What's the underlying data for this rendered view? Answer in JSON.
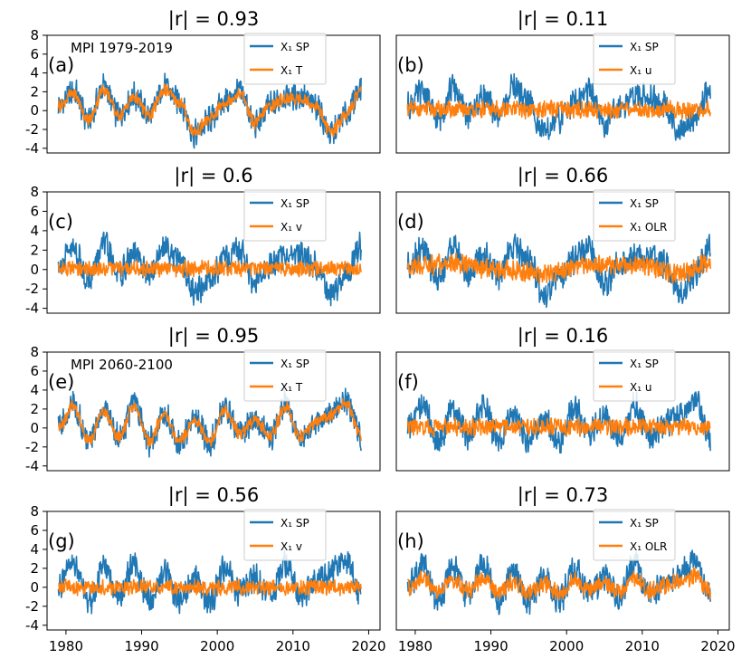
{
  "figure": {
    "colors": {
      "sp": "#1f77b4",
      "var": "#ff7f0e"
    }
  },
  "chart_data": [
    {
      "id": "a",
      "type": "line",
      "title": "|r| = 0.93",
      "panel_label": "(a)",
      "period_label": "MPI 1979-2019",
      "xlim": [
        1977.5,
        2021.5
      ],
      "ylim": [
        -4.5,
        8
      ],
      "yticks": [
        -4,
        -2,
        0,
        2,
        4,
        6,
        8
      ],
      "xticks": [],
      "legend": {
        "location": "upper-center",
        "entries": [
          "X₁ SP",
          "X₁ T"
        ]
      },
      "series": [
        {
          "name": "X₁ SP",
          "color": "#1f77b4",
          "x": [
            1979,
            1981,
            1983,
            1985,
            1987,
            1989,
            1991,
            1993,
            1995,
            1997,
            1999,
            2001,
            2003,
            2005,
            2007,
            2009,
            2011,
            2013,
            2015,
            2017,
            2019
          ],
          "values": [
            0.5,
            2.0,
            -1.0,
            2.5,
            -0.5,
            1.5,
            -0.5,
            2.5,
            1.0,
            -2.5,
            -1.0,
            1.0,
            2.0,
            -1.5,
            0.5,
            1.5,
            1.5,
            0.5,
            -2.5,
            -0.5,
            2.5
          ],
          "amplitude": 1.3
        },
        {
          "name": "X₁ T",
          "color": "#ff7f0e",
          "x": [
            1979,
            1981,
            1983,
            1985,
            1987,
            1989,
            1991,
            1993,
            1995,
            1997,
            1999,
            2001,
            2003,
            2005,
            2007,
            2009,
            2011,
            2013,
            2015,
            2017,
            2019
          ],
          "values": [
            0.5,
            1.8,
            -1.0,
            2.3,
            -0.5,
            1.4,
            -0.5,
            2.2,
            0.9,
            -2.3,
            -0.9,
            0.9,
            1.8,
            -1.3,
            0.5,
            1.3,
            1.3,
            0.5,
            -2.3,
            -0.5,
            2.2
          ],
          "amplitude": 0.6
        }
      ]
    },
    {
      "id": "b",
      "type": "line",
      "title": "|r| = 0.11",
      "panel_label": "(b)",
      "xlim": [
        1977.5,
        2021.5
      ],
      "ylim": [
        -4.5,
        8
      ],
      "yticks": [],
      "xticks": [],
      "legend": {
        "location": "upper-center",
        "entries": [
          "X₁ SP",
          "X₁ u"
        ]
      },
      "series": [
        {
          "name": "X₁ SP",
          "color": "#1f77b4",
          "x": [
            1979,
            1981,
            1983,
            1985,
            1987,
            1989,
            1991,
            1993,
            1995,
            1997,
            1999,
            2001,
            2003,
            2005,
            2007,
            2009,
            2011,
            2013,
            2015,
            2017,
            2019
          ],
          "values": [
            0.5,
            2.0,
            -1.0,
            2.5,
            -0.5,
            1.5,
            -0.5,
            2.5,
            1.0,
            -2.5,
            -1.0,
            1.0,
            2.0,
            -1.5,
            0.5,
            1.5,
            1.5,
            0.5,
            -2.5,
            -0.5,
            2.5
          ],
          "amplitude": 1.3
        },
        {
          "name": "X₁ u",
          "color": "#ff7f0e",
          "x": [
            1979,
            2019
          ],
          "values": [
            0.1,
            0.1
          ],
          "amplitude": 0.8
        }
      ]
    },
    {
      "id": "c",
      "type": "line",
      "title": "|r| = 0.6",
      "panel_label": "(c)",
      "xlim": [
        1977.5,
        2021.5
      ],
      "ylim": [
        -4.5,
        8
      ],
      "yticks": [
        -4,
        -2,
        0,
        2,
        4,
        6,
        8
      ],
      "xticks": [],
      "legend": {
        "location": "upper-center",
        "entries": [
          "X₁ SP",
          "X₁ v"
        ]
      },
      "series": [
        {
          "name": "X₁ SP",
          "color": "#1f77b4",
          "x": [
            1979,
            1981,
            1983,
            1985,
            1987,
            1989,
            1991,
            1993,
            1995,
            1997,
            1999,
            2001,
            2003,
            2005,
            2007,
            2009,
            2011,
            2013,
            2015,
            2017,
            2019
          ],
          "values": [
            0.5,
            2.0,
            -1.0,
            2.5,
            -0.5,
            1.5,
            -0.5,
            2.5,
            1.0,
            -2.5,
            -1.0,
            1.0,
            2.0,
            -1.5,
            0.5,
            1.5,
            1.5,
            0.5,
            -2.5,
            -0.5,
            2.5
          ],
          "amplitude": 1.3
        },
        {
          "name": "X₁ v",
          "color": "#ff7f0e",
          "x": [
            1979,
            2019
          ],
          "values": [
            0.1,
            0.1
          ],
          "amplitude": 0.7
        }
      ]
    },
    {
      "id": "d",
      "type": "line",
      "title": "|r| = 0.66",
      "panel_label": "(d)",
      "xlim": [
        1977.5,
        2021.5
      ],
      "ylim": [
        -4.5,
        8
      ],
      "yticks": [],
      "xticks": [],
      "legend": {
        "location": "upper-center",
        "entries": [
          "X₁ SP",
          "X₁ OLR"
        ]
      },
      "series": [
        {
          "name": "X₁ SP",
          "color": "#1f77b4",
          "x": [
            1979,
            1981,
            1983,
            1985,
            1987,
            1989,
            1991,
            1993,
            1995,
            1997,
            1999,
            2001,
            2003,
            2005,
            2007,
            2009,
            2011,
            2013,
            2015,
            2017,
            2019
          ],
          "values": [
            0.5,
            2.0,
            -1.0,
            2.5,
            -0.5,
            1.5,
            -0.5,
            2.5,
            1.0,
            -2.5,
            -1.0,
            1.0,
            2.0,
            -1.5,
            0.5,
            1.5,
            1.5,
            0.5,
            -2.5,
            -0.5,
            2.5
          ],
          "amplitude": 1.3
        },
        {
          "name": "X₁ OLR",
          "color": "#ff7f0e",
          "x": [
            1979,
            1985,
            1991,
            1997,
            2003,
            2009,
            2015,
            2019
          ],
          "values": [
            0.3,
            0.6,
            0.0,
            -0.5,
            0.6,
            0.5,
            -0.5,
            0.8
          ],
          "amplitude": 0.9
        }
      ]
    },
    {
      "id": "e",
      "type": "line",
      "title": "|r| = 0.95",
      "panel_label": "(e)",
      "period_label": "MPI 2060-2100",
      "xlim": [
        1977.5,
        2021.5
      ],
      "ylim": [
        -4.5,
        8
      ],
      "yticks": [
        -4,
        -2,
        0,
        2,
        4,
        6,
        8
      ],
      "xticks": [],
      "legend": {
        "location": "upper-center",
        "entries": [
          "X₁ SP",
          "X₁ T"
        ]
      },
      "series": [
        {
          "name": "X₁ SP",
          "color": "#1f77b4",
          "x": [
            1979,
            1981,
            1983,
            1985,
            1987,
            1989,
            1991,
            1993,
            1995,
            1997,
            1999,
            2001,
            2003,
            2005,
            2007,
            2009,
            2011,
            2013,
            2015,
            2017,
            2019
          ],
          "values": [
            0.0,
            2.5,
            -1.5,
            2.0,
            -1.0,
            2.5,
            -1.5,
            1.5,
            -1.5,
            1.0,
            -1.5,
            2.0,
            -0.5,
            1.0,
            -1.0,
            2.5,
            -1.0,
            0.5,
            1.5,
            3.0,
            -1.0
          ],
          "amplitude": 1.3
        },
        {
          "name": "X₁ T",
          "color": "#ff7f0e",
          "x": [
            1979,
            1981,
            1983,
            1985,
            1987,
            1989,
            1991,
            1993,
            1995,
            1997,
            1999,
            2001,
            2003,
            2005,
            2007,
            2009,
            2011,
            2013,
            2015,
            2017,
            2019
          ],
          "values": [
            0.0,
            2.3,
            -1.4,
            1.8,
            -0.9,
            2.3,
            -1.4,
            1.4,
            -1.4,
            0.9,
            -1.4,
            1.8,
            -0.5,
            0.9,
            -0.9,
            2.3,
            -0.9,
            0.5,
            1.4,
            2.7,
            -0.9
          ],
          "amplitude": 0.6
        }
      ]
    },
    {
      "id": "f",
      "type": "line",
      "title": "|r| = 0.16",
      "panel_label": "(f)",
      "xlim": [
        1977.5,
        2021.5
      ],
      "ylim": [
        -4.5,
        8
      ],
      "yticks": [],
      "xticks": [],
      "legend": {
        "location": "upper-center",
        "entries": [
          "X₁ SP",
          "X₁ u"
        ]
      },
      "series": [
        {
          "name": "X₁ SP",
          "color": "#1f77b4",
          "x": [
            1979,
            1981,
            1983,
            1985,
            1987,
            1989,
            1991,
            1993,
            1995,
            1997,
            1999,
            2001,
            2003,
            2005,
            2007,
            2009,
            2011,
            2013,
            2015,
            2017,
            2019
          ],
          "values": [
            0.0,
            2.5,
            -1.5,
            2.0,
            -1.0,
            2.5,
            -1.5,
            1.5,
            -1.5,
            1.0,
            -1.5,
            2.0,
            -0.5,
            1.0,
            -1.0,
            2.5,
            -1.0,
            0.5,
            1.5,
            3.0,
            -1.0
          ],
          "amplitude": 1.3
        },
        {
          "name": "X₁ u",
          "color": "#ff7f0e",
          "x": [
            1979,
            2019
          ],
          "values": [
            0.1,
            0.1
          ],
          "amplitude": 0.8
        }
      ]
    },
    {
      "id": "g",
      "type": "line",
      "title": "|r| = 0.56",
      "panel_label": "(g)",
      "xlim": [
        1977.5,
        2021.5
      ],
      "ylim": [
        -4.5,
        8
      ],
      "yticks": [
        -4,
        -2,
        0,
        2,
        4,
        6,
        8
      ],
      "xticks": [
        1980,
        1990,
        2000,
        2010,
        2020
      ],
      "legend": {
        "location": "upper-center",
        "entries": [
          "X₁ SP",
          "X₁ v"
        ]
      },
      "series": [
        {
          "name": "X₁ SP",
          "color": "#1f77b4",
          "x": [
            1979,
            1981,
            1983,
            1985,
            1987,
            1989,
            1991,
            1993,
            1995,
            1997,
            1999,
            2001,
            2003,
            2005,
            2007,
            2009,
            2011,
            2013,
            2015,
            2017,
            2019
          ],
          "values": [
            0.0,
            2.5,
            -1.5,
            2.0,
            -1.0,
            2.5,
            -1.5,
            1.5,
            -1.5,
            1.0,
            -1.5,
            2.0,
            -0.5,
            1.0,
            -1.0,
            2.5,
            -1.0,
            0.5,
            1.5,
            3.0,
            -1.0
          ],
          "amplitude": 1.3
        },
        {
          "name": "X₁ v",
          "color": "#ff7f0e",
          "x": [
            1979,
            2019
          ],
          "values": [
            0.0,
            0.0
          ],
          "amplitude": 0.7
        }
      ]
    },
    {
      "id": "h",
      "type": "line",
      "title": "|r| = 0.73",
      "panel_label": "(h)",
      "xlim": [
        1977.5,
        2021.5
      ],
      "ylim": [
        -4.5,
        8
      ],
      "yticks": [],
      "xticks": [
        1980,
        1990,
        2000,
        2010,
        2020
      ],
      "legend": {
        "location": "upper-center",
        "entries": [
          "X₁ SP",
          "X₁ OLR"
        ]
      },
      "series": [
        {
          "name": "X₁ SP",
          "color": "#1f77b4",
          "x": [
            1979,
            1981,
            1983,
            1985,
            1987,
            1989,
            1991,
            1993,
            1995,
            1997,
            1999,
            2001,
            2003,
            2005,
            2007,
            2009,
            2011,
            2013,
            2015,
            2017,
            2019
          ],
          "values": [
            0.0,
            2.5,
            -1.5,
            2.0,
            -1.0,
            2.5,
            -1.5,
            1.5,
            -1.5,
            1.0,
            -1.5,
            2.0,
            -0.5,
            1.0,
            -1.0,
            2.5,
            -1.0,
            0.5,
            1.5,
            3.0,
            -1.0
          ],
          "amplitude": 1.3
        },
        {
          "name": "X₁ OLR",
          "color": "#ff7f0e",
          "x": [
            1979,
            1981,
            1983,
            1985,
            1987,
            1989,
            1991,
            1993,
            1995,
            1997,
            1999,
            2001,
            2003,
            2005,
            2007,
            2009,
            2011,
            2013,
            2015,
            2017,
            2019
          ],
          "values": [
            0.0,
            1.0,
            -0.6,
            0.8,
            -0.4,
            1.0,
            -0.6,
            0.6,
            -0.6,
            0.4,
            -0.6,
            0.8,
            -0.2,
            0.4,
            -0.4,
            1.0,
            -0.4,
            0.2,
            0.6,
            1.2,
            -0.4
          ],
          "amplitude": 0.8
        }
      ]
    }
  ]
}
